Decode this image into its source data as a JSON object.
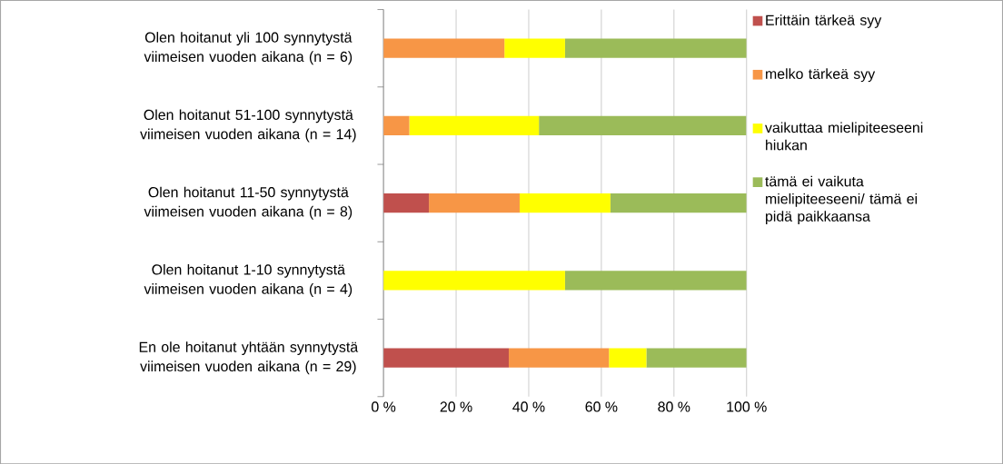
{
  "chart_data": {
    "type": "bar",
    "orientation": "horizontal",
    "stacked": true,
    "categories": [
      "Olen hoitanut yli 100 synnytystä viimeisen vuoden aikana (n = 6)",
      "Olen hoitanut 51-100 synnytystä viimeisen vuoden aikana (n = 14)",
      "Olen hoitanut 11-50 synnytystä viimeisen vuoden aikana (n = 8)",
      "Olen hoitanut 1-10 synnytystä viimeisen vuoden aikana (n = 4)",
      "En ole hoitanut yhtään synnytystä viimeisen vuoden aikana (n = 29)"
    ],
    "series": [
      {
        "name": "Erittäin tärkeä syy",
        "color": "#c0504d",
        "values": [
          0,
          0,
          12.5,
          0,
          34.5
        ]
      },
      {
        "name": "melko tärkeä syy",
        "color": "#f79646",
        "values": [
          33.3,
          7.1,
          25,
          0,
          27.6
        ]
      },
      {
        "name": "vaikuttaa mielipiteeseeni hiukan",
        "color": "#ffff00",
        "values": [
          16.7,
          35.7,
          25,
          50,
          10.3
        ]
      },
      {
        "name": "tämä ei vaikuta mielipiteeseeni/ tämä ei pidä paikkaansa",
        "color": "#9bbb59",
        "values": [
          50,
          57.1,
          37.5,
          50,
          27.6
        ]
      }
    ],
    "xlim": [
      0,
      100
    ],
    "xticks": [
      {
        "value": 0,
        "label": "0 %"
      },
      {
        "value": 20,
        "label": "20 %"
      },
      {
        "value": 40,
        "label": "40 %"
      },
      {
        "value": 60,
        "label": "60 %"
      },
      {
        "value": 80,
        "label": "80 %"
      },
      {
        "value": 100,
        "label": "100 %"
      }
    ],
    "grid": "x",
    "legend": "right"
  }
}
